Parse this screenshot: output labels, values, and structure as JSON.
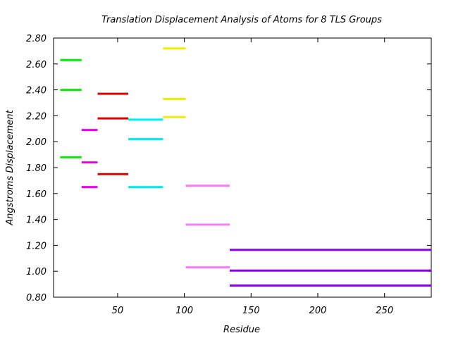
{
  "chart_data": {
    "type": "line",
    "title": "Translation Displacement Analysis of Atoms for 8 TLS Groups",
    "xlabel": "Residue",
    "ylabel": "Angstroms Displacement",
    "xlim": [
      2,
      285
    ],
    "ylim": [
      0.8,
      2.8
    ],
    "x_ticks": [
      50,
      100,
      150,
      200,
      250
    ],
    "y_ticks": [
      0.8,
      1.0,
      1.2,
      1.4,
      1.6,
      1.8,
      2.0,
      2.2,
      2.4,
      2.6,
      2.8
    ],
    "y_tick_labels": [
      "0.80",
      "1.00",
      "1.20",
      "1.40",
      "1.60",
      "1.80",
      "2.00",
      "2.20",
      "2.40",
      "2.60",
      "2.80"
    ],
    "grid": false,
    "legend": "none",
    "series": [
      {
        "color": "#00ee00",
        "segments": [
          {
            "x": [
              7,
              23
            ],
            "y": 2.63
          },
          {
            "x": [
              7,
              23
            ],
            "y": 2.4
          },
          {
            "x": [
              7,
              23
            ],
            "y": 1.88
          }
        ]
      },
      {
        "color": "#ee00ee",
        "segments": [
          {
            "x": [
              23,
              35
            ],
            "y": 2.09
          },
          {
            "x": [
              23,
              35
            ],
            "y": 1.84
          },
          {
            "x": [
              23,
              35
            ],
            "y": 1.65
          }
        ]
      },
      {
        "color": "#dd0000",
        "segments": [
          {
            "x": [
              35,
              58
            ],
            "y": 2.37
          },
          {
            "x": [
              35,
              58
            ],
            "y": 2.18
          },
          {
            "x": [
              35,
              58
            ],
            "y": 1.75
          }
        ]
      },
      {
        "color": "#00eeee",
        "segments": [
          {
            "x": [
              58,
              84
            ],
            "y": 2.17
          },
          {
            "x": [
              58,
              84
            ],
            "y": 2.02
          },
          {
            "x": [
              58,
              84
            ],
            "y": 1.65
          }
        ]
      },
      {
        "color": "#eeee00",
        "segments": [
          {
            "x": [
              84,
              101
            ],
            "y": 2.72
          },
          {
            "x": [
              84,
              101
            ],
            "y": 2.33
          },
          {
            "x": [
              84,
              101
            ],
            "y": 2.19
          }
        ]
      },
      {
        "color": "#ff77ff",
        "segments": [
          {
            "x": [
              101,
              134
            ],
            "y": 1.66
          },
          {
            "x": [
              101,
              134
            ],
            "y": 1.36
          },
          {
            "x": [
              101,
              134
            ],
            "y": 1.03
          }
        ]
      },
      {
        "color": "#8a00ee",
        "segments": [
          {
            "x": [
              134,
              285
            ],
            "y": 1.165
          },
          {
            "x": [
              134,
              285
            ],
            "y": 1.005
          },
          {
            "x": [
              134,
              285
            ],
            "y": 0.89
          }
        ]
      }
    ]
  }
}
